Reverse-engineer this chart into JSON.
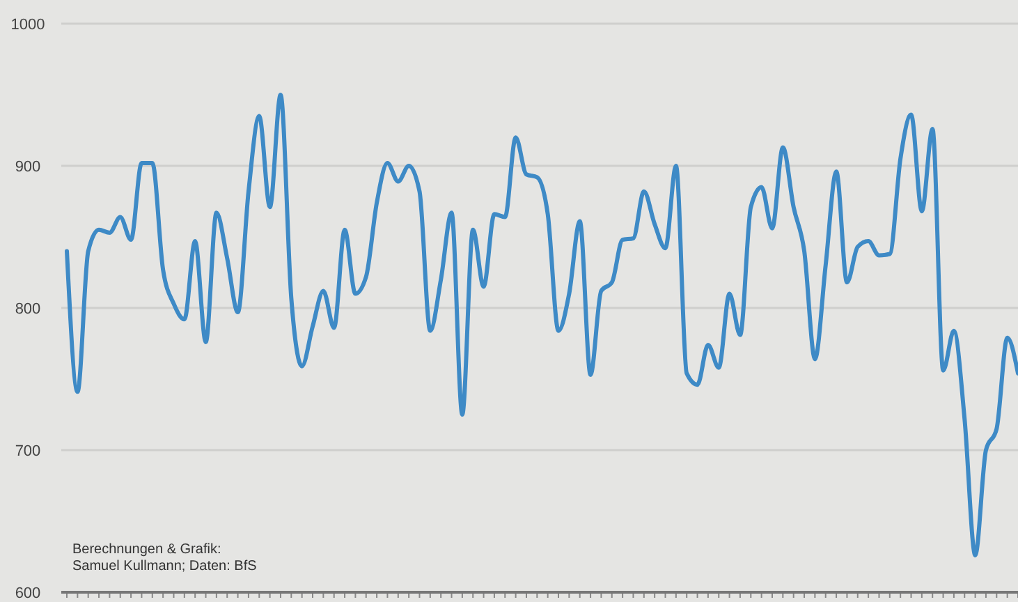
{
  "chart_data": {
    "type": "line",
    "categories": [
      null,
      null,
      null,
      null,
      null,
      null,
      null,
      null,
      null,
      null,
      null,
      null,
      null,
      null,
      null,
      null,
      null,
      null,
      null,
      null,
      null,
      null,
      null,
      null,
      null,
      null,
      null,
      null,
      null,
      null,
      null,
      null,
      null,
      null,
      null,
      null,
      null,
      null,
      null,
      null,
      null,
      null,
      null,
      null,
      null,
      null,
      null,
      null,
      null,
      null,
      null,
      null,
      null,
      null,
      null,
      null,
      null,
      null,
      null,
      null,
      null,
      null,
      null,
      null,
      null,
      null,
      null,
      null,
      null,
      null,
      null,
      null,
      null,
      null,
      null,
      null,
      null,
      null,
      null,
      null,
      null,
      null,
      null,
      null,
      null,
      null,
      null,
      null,
      null,
      null
    ],
    "series": [
      {
        "color": "#3e8ac6",
        "values": [
          840,
          741,
          840,
          855,
          853,
          864,
          848,
          902,
          902,
          827,
          803,
          792,
          847,
          776,
          867,
          835,
          797,
          882,
          935,
          871,
          950,
          807,
          759,
          787,
          812,
          786,
          855,
          810,
          822,
          874,
          902,
          889,
          900,
          882,
          784,
          820,
          867,
          725,
          855,
          815,
          866,
          864,
          920,
          894,
          892,
          866,
          784,
          810,
          861,
          753,
          812,
          818,
          848,
          849,
          882,
          859,
          842,
          900,
          754,
          746,
          774,
          758,
          810,
          781,
          871,
          885,
          856,
          913,
          871,
          840,
          764,
          830,
          896,
          818,
          843,
          847,
          837,
          838,
          905,
          936,
          868,
          926,
          756,
          784,
          722,
          626,
          700,
          715,
          779,
          754
        ]
      }
    ],
    "ylim": [
      600,
      1000
    ],
    "yticks": [
      600,
      700,
      800,
      900,
      1000
    ],
    "grid": "y",
    "marker": "none",
    "line_style": "solid",
    "annotations": [
      "Berechnungen & Grafik:\nSamuel Kullmann; Daten: BfS"
    ]
  }
}
